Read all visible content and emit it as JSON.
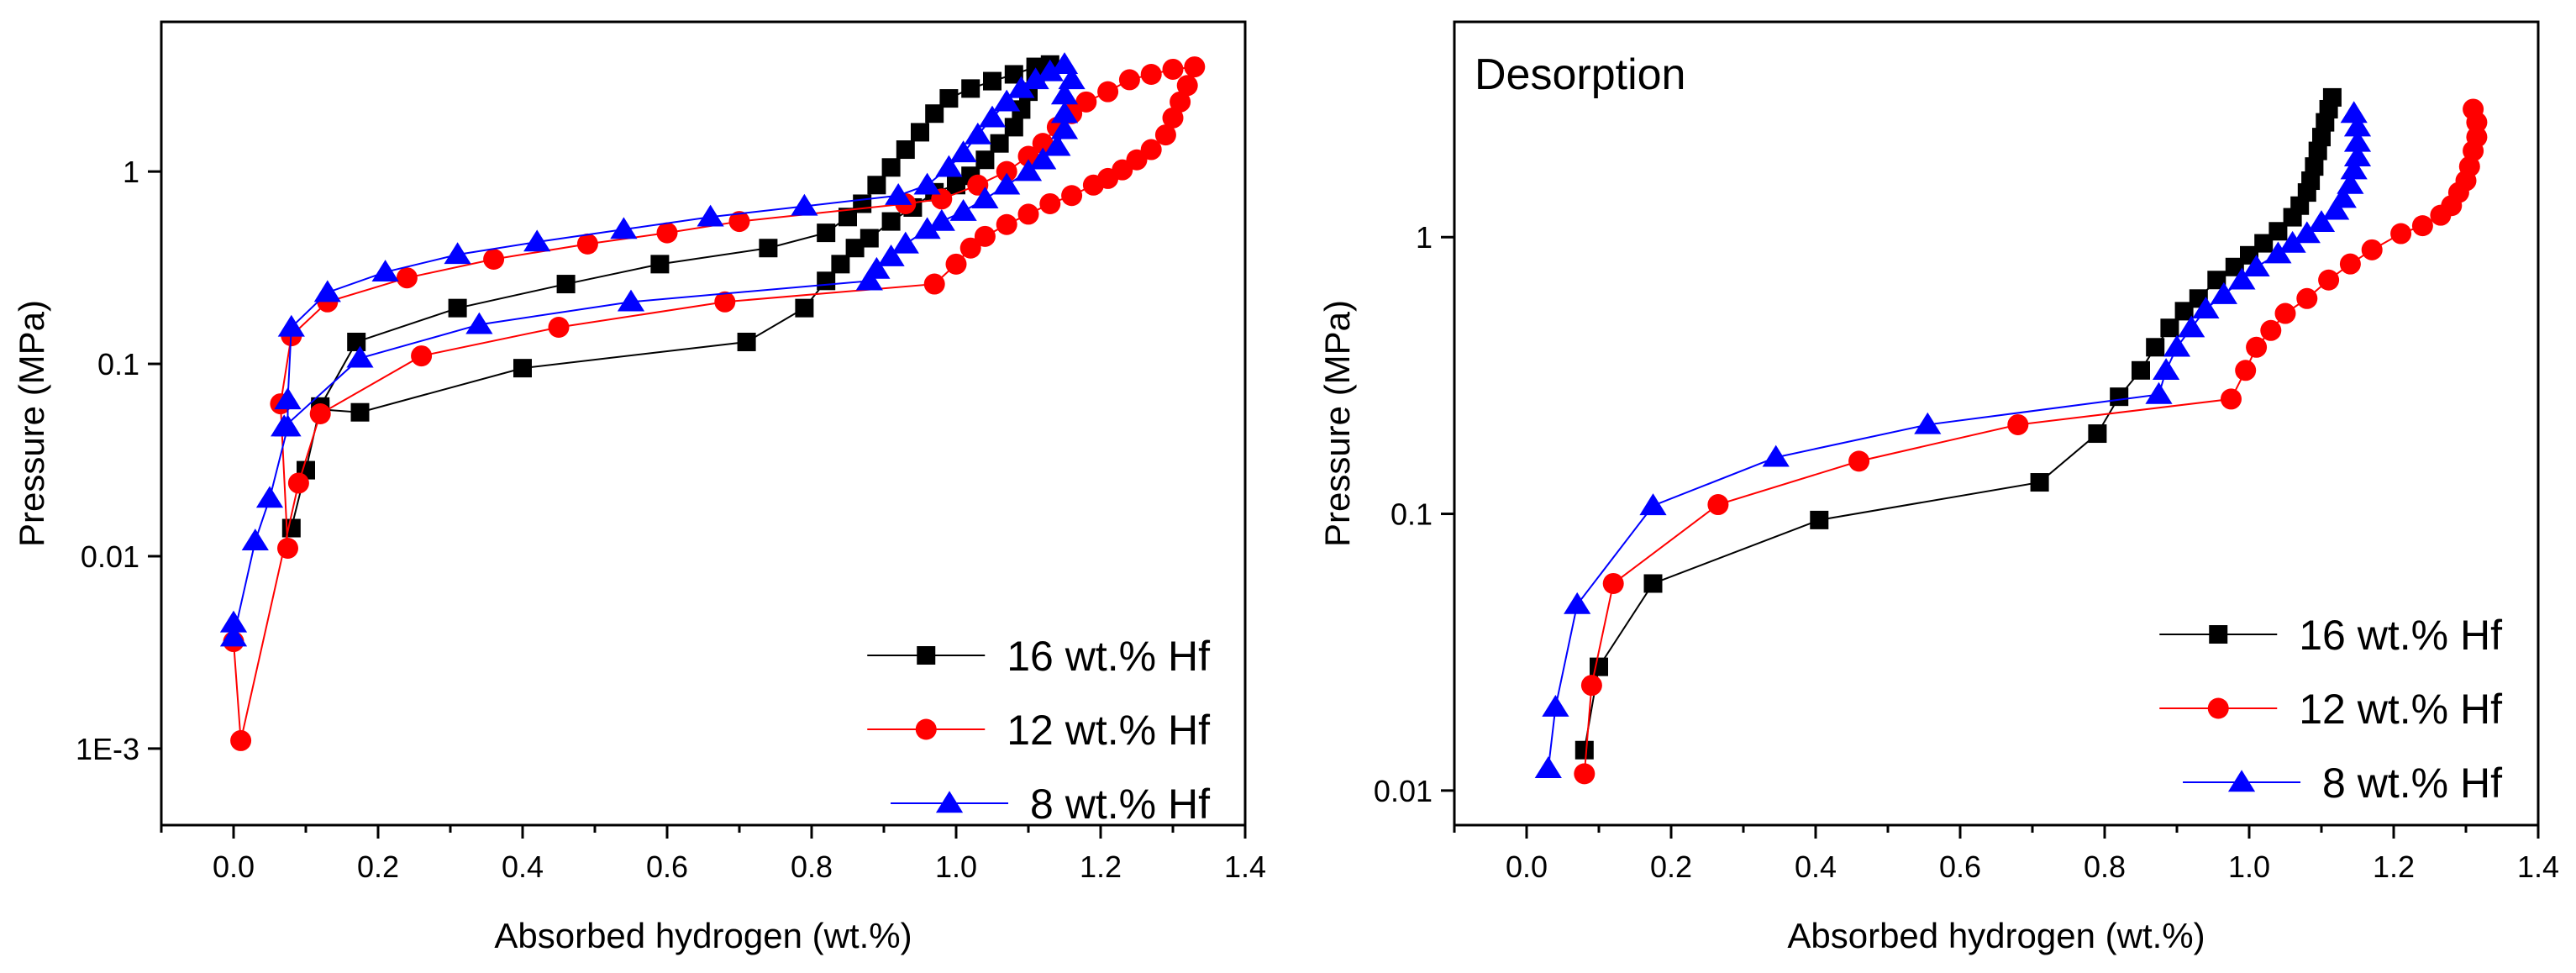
{
  "chart_data": [
    {
      "type": "scatter",
      "title": "",
      "xlabel": "Absorbed hydrogen (wt.%)",
      "ylabel": "Pressure (MPa)",
      "xlim": [
        -0.1,
        1.4
      ],
      "ylim": [
        0.0004,
        6
      ],
      "yscale": "log",
      "x_ticks": [
        0.0,
        0.2,
        0.4,
        0.6,
        0.8,
        1.0,
        1.2,
        1.4
      ],
      "x_tick_labels": [
        "0.0",
        "0.2",
        "0.4",
        "0.6",
        "0.8",
        "1.0",
        "1.2",
        "1.4"
      ],
      "y_ticks": [
        0.001,
        0.01,
        0.1,
        1
      ],
      "y_tick_labels": [
        "1E-3",
        "0.01",
        "0.1",
        "1"
      ],
      "legend_position": "bottom-right",
      "series": [
        {
          "name": "16 wt.% Hf",
          "color": "#000000",
          "marker": "square",
          "points": [
            [
              0.08,
              0.014
            ],
            [
              0.1,
              0.028
            ],
            [
              0.12,
              0.06
            ],
            [
              0.17,
              0.13
            ],
            [
              0.31,
              0.195
            ],
            [
              0.46,
              0.26
            ],
            [
              0.59,
              0.33
            ],
            [
              0.74,
              0.4
            ],
            [
              0.82,
              0.48
            ],
            [
              0.85,
              0.58
            ],
            [
              0.87,
              0.68
            ],
            [
              0.89,
              0.85
            ],
            [
              0.91,
              1.05
            ],
            [
              0.93,
              1.3
            ],
            [
              0.95,
              1.6
            ],
            [
              0.97,
              2.0
            ],
            [
              0.99,
              2.4
            ],
            [
              1.02,
              2.7
            ],
            [
              1.05,
              2.95
            ],
            [
              1.08,
              3.2
            ],
            [
              1.11,
              3.5
            ],
            [
              1.13,
              3.6
            ],
            [
              1.11,
              3.2
            ],
            [
              1.1,
              2.6
            ],
            [
              1.09,
              2.1
            ],
            [
              1.08,
              1.7
            ],
            [
              1.06,
              1.4
            ],
            [
              1.04,
              1.15
            ],
            [
              1.02,
              0.95
            ],
            [
              1.0,
              0.85
            ],
            [
              0.97,
              0.78
            ],
            [
              0.94,
              0.65
            ],
            [
              0.91,
              0.55
            ],
            [
              0.88,
              0.45
            ],
            [
              0.86,
              0.4
            ],
            [
              0.84,
              0.33
            ],
            [
              0.82,
              0.27
            ],
            [
              0.79,
              0.195
            ],
            [
              0.71,
              0.13
            ],
            [
              0.4,
              0.095
            ],
            [
              0.175,
              0.056
            ],
            [
              0.12,
              0.058
            ]
          ]
        },
        {
          "name": "12 wt.% Hf",
          "color": "#ff0000",
          "marker": "circle",
          "points": [
            [
              0.0,
              0.0036
            ],
            [
              0.01,
              0.0011
            ],
            [
              0.09,
              0.024
            ],
            [
              0.12,
              0.055
            ],
            [
              0.26,
              0.11
            ],
            [
              0.45,
              0.155
            ],
            [
              0.68,
              0.21
            ],
            [
              0.97,
              0.26
            ],
            [
              1.0,
              0.33
            ],
            [
              1.02,
              0.4
            ],
            [
              1.04,
              0.46
            ],
            [
              1.07,
              0.53
            ],
            [
              1.1,
              0.6
            ],
            [
              1.13,
              0.68
            ],
            [
              1.16,
              0.75
            ],
            [
              1.19,
              0.85
            ],
            [
              1.21,
              0.92
            ],
            [
              1.23,
              1.02
            ],
            [
              1.25,
              1.15
            ],
            [
              1.27,
              1.3
            ],
            [
              1.29,
              1.55
            ],
            [
              1.3,
              1.9
            ],
            [
              1.31,
              2.3
            ],
            [
              1.32,
              2.8
            ],
            [
              1.33,
              3.5
            ],
            [
              1.3,
              3.4
            ],
            [
              1.27,
              3.2
            ],
            [
              1.24,
              3.0
            ],
            [
              1.21,
              2.6
            ],
            [
              1.18,
              2.3
            ],
            [
              1.16,
              2.0
            ],
            [
              1.14,
              1.7
            ],
            [
              1.12,
              1.4
            ],
            [
              1.1,
              1.2
            ],
            [
              1.07,
              1.0
            ],
            [
              1.03,
              0.85
            ],
            [
              0.98,
              0.72
            ],
            [
              0.93,
              0.68
            ],
            [
              0.7,
              0.55
            ],
            [
              0.6,
              0.48
            ],
            [
              0.49,
              0.42
            ],
            [
              0.36,
              0.35
            ],
            [
              0.24,
              0.28
            ],
            [
              0.13,
              0.21
            ],
            [
              0.08,
              0.14
            ],
            [
              0.065,
              0.062
            ],
            [
              0.075,
              0.011
            ]
          ]
        },
        {
          "name": "8 wt.% Hf",
          "color": "#0000ff",
          "marker": "triangle",
          "points": [
            [
              0.0,
              0.0045
            ],
            [
              0.0,
              0.0038
            ],
            [
              0.03,
              0.012
            ],
            [
              0.05,
              0.02
            ],
            [
              0.075,
              0.047
            ],
            [
              0.075,
              0.065
            ],
            [
              0.08,
              0.155
            ],
            [
              0.13,
              0.235
            ],
            [
              0.21,
              0.3
            ],
            [
              0.31,
              0.37
            ],
            [
              0.42,
              0.43
            ],
            [
              0.54,
              0.5
            ],
            [
              0.66,
              0.58
            ],
            [
              0.79,
              0.66
            ],
            [
              0.92,
              0.75
            ],
            [
              0.96,
              0.85
            ],
            [
              0.99,
              1.05
            ],
            [
              1.01,
              1.25
            ],
            [
              1.03,
              1.55
            ],
            [
              1.05,
              1.9
            ],
            [
              1.07,
              2.3
            ],
            [
              1.09,
              2.7
            ],
            [
              1.11,
              3.0
            ],
            [
              1.13,
              3.3
            ],
            [
              1.15,
              3.6
            ],
            [
              1.16,
              3.0
            ],
            [
              1.15,
              2.5
            ],
            [
              1.15,
              2.0
            ],
            [
              1.15,
              1.65
            ],
            [
              1.14,
              1.35
            ],
            [
              1.12,
              1.15
            ],
            [
              1.1,
              1.0
            ],
            [
              1.07,
              0.85
            ],
            [
              1.04,
              0.72
            ],
            [
              1.01,
              0.62
            ],
            [
              0.98,
              0.55
            ],
            [
              0.96,
              0.5
            ],
            [
              0.93,
              0.42
            ],
            [
              0.91,
              0.36
            ],
            [
              0.89,
              0.31
            ],
            [
              0.88,
              0.27
            ],
            [
              0.55,
              0.21
            ],
            [
              0.34,
              0.16
            ],
            [
              0.175,
              0.107
            ],
            [
              0.07,
              0.047
            ]
          ]
        }
      ]
    },
    {
      "type": "scatter",
      "title": "Desorption",
      "xlabel": "Absorbed hydrogen (wt.%)",
      "ylabel": "Pressure (MPa)",
      "xlim": [
        -0.1,
        1.4
      ],
      "ylim": [
        0.0075,
        6
      ],
      "yscale": "log",
      "x_ticks": [
        0.0,
        0.2,
        0.4,
        0.6,
        0.8,
        1.0,
        1.2,
        1.4
      ],
      "x_tick_labels": [
        "0.0",
        "0.2",
        "0.4",
        "0.6",
        "0.8",
        "1.0",
        "1.2",
        "1.4"
      ],
      "y_ticks": [
        0.01,
        0.1,
        1
      ],
      "y_tick_labels": [
        "0.01",
        "0.1",
        "1"
      ],
      "legend_position": "bottom-right",
      "series": [
        {
          "name": "16 wt.% Hf",
          "color": "#000000",
          "marker": "square",
          "points": [
            [
              1.115,
              3.2
            ],
            [
              1.11,
              2.9
            ],
            [
              1.105,
              2.6
            ],
            [
              1.1,
              2.3
            ],
            [
              1.095,
              2.05
            ],
            [
              1.09,
              1.8
            ],
            [
              1.085,
              1.6
            ],
            [
              1.08,
              1.45
            ],
            [
              1.07,
              1.3
            ],
            [
              1.06,
              1.18
            ],
            [
              1.04,
              1.05
            ],
            [
              1.02,
              0.95
            ],
            [
              1.0,
              0.86
            ],
            [
              0.98,
              0.78
            ],
            [
              0.955,
              0.7
            ],
            [
              0.93,
              0.6
            ],
            [
              0.91,
              0.54
            ],
            [
              0.89,
              0.47
            ],
            [
              0.87,
              0.4
            ],
            [
              0.85,
              0.33
            ],
            [
              0.82,
              0.265
            ],
            [
              0.79,
              0.195
            ],
            [
              0.71,
              0.13
            ],
            [
              0.405,
              0.095
            ],
            [
              0.175,
              0.056
            ],
            [
              0.1,
              0.028
            ],
            [
              0.08,
              0.014
            ]
          ]
        },
        {
          "name": "12 wt.% Hf",
          "color": "#ff0000",
          "marker": "circle",
          "points": [
            [
              1.31,
              2.9
            ],
            [
              1.315,
              2.6
            ],
            [
              1.315,
              2.3
            ],
            [
              1.31,
              2.05
            ],
            [
              1.305,
              1.8
            ],
            [
              1.3,
              1.6
            ],
            [
              1.29,
              1.45
            ],
            [
              1.28,
              1.3
            ],
            [
              1.265,
              1.2
            ],
            [
              1.24,
              1.1
            ],
            [
              1.21,
              1.03
            ],
            [
              1.17,
              0.9
            ],
            [
              1.14,
              0.8
            ],
            [
              1.11,
              0.7
            ],
            [
              1.08,
              0.6
            ],
            [
              1.05,
              0.53
            ],
            [
              1.03,
              0.46
            ],
            [
              1.01,
              0.4
            ],
            [
              0.995,
              0.33
            ],
            [
              0.975,
              0.26
            ],
            [
              0.68,
              0.21
            ],
            [
              0.46,
              0.155
            ],
            [
              0.265,
              0.108
            ],
            [
              0.12,
              0.056
            ],
            [
              0.09,
              0.024
            ],
            [
              0.08,
              0.0115
            ]
          ]
        },
        {
          "name": "8 wt.% Hf",
          "color": "#0000ff",
          "marker": "triangle",
          "points": [
            [
              1.145,
              2.8
            ],
            [
              1.15,
              2.5
            ],
            [
              1.15,
              2.2
            ],
            [
              1.15,
              1.95
            ],
            [
              1.145,
              1.75
            ],
            [
              1.14,
              1.55
            ],
            [
              1.13,
              1.38
            ],
            [
              1.12,
              1.25
            ],
            [
              1.1,
              1.13
            ],
            [
              1.08,
              1.03
            ],
            [
              1.06,
              0.95
            ],
            [
              1.04,
              0.87
            ],
            [
              1.01,
              0.78
            ],
            [
              0.99,
              0.7
            ],
            [
              0.965,
              0.62
            ],
            [
              0.94,
              0.55
            ],
            [
              0.92,
              0.47
            ],
            [
              0.9,
              0.4
            ],
            [
              0.885,
              0.33
            ],
            [
              0.875,
              0.27
            ],
            [
              0.555,
              0.21
            ],
            [
              0.345,
              0.16
            ],
            [
              0.175,
              0.107
            ],
            [
              0.07,
              0.047
            ],
            [
              0.04,
              0.02
            ],
            [
              0.03,
              0.012
            ]
          ]
        }
      ]
    }
  ]
}
